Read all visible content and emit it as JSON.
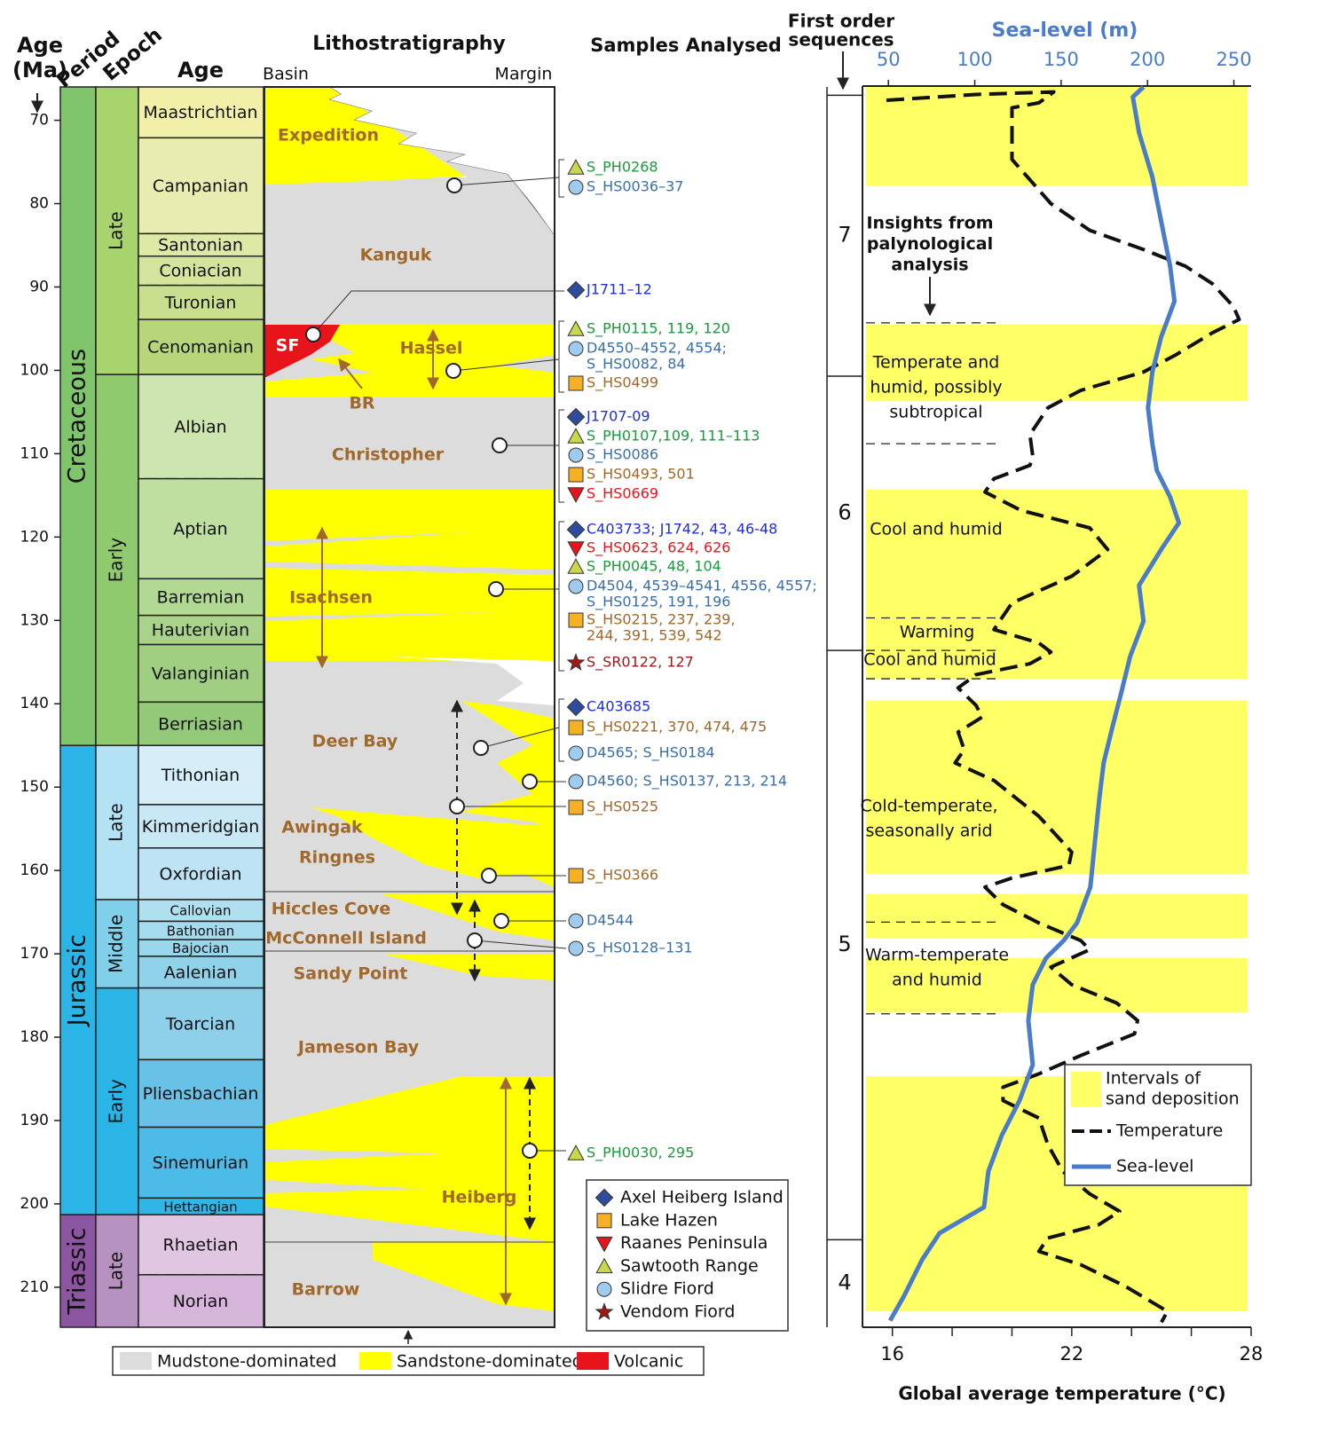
{
  "headers": {
    "age_ma": [
      "Age",
      "(Ma)"
    ],
    "period": "Period",
    "epoch": "Epoch",
    "age": "Age",
    "lithostratigraphy": "Lithostratigraphy",
    "basin": "Basin",
    "margin": "Margin",
    "samples": "Samples Analysed",
    "sequences": [
      "First order",
      "sequences"
    ]
  },
  "age_axis": {
    "ylim": [
      66,
      214.8
    ],
    "yticks": [
      70,
      80,
      90,
      100,
      110,
      120,
      130,
      140,
      150,
      160,
      170,
      180,
      190,
      200,
      210
    ]
  },
  "periods": [
    {
      "name": "Cretaceous",
      "top": 66,
      "base": 145,
      "color": "#80c46c"
    },
    {
      "name": "Jurassic",
      "top": 145,
      "base": 201.3,
      "color": "#2bb5e6"
    },
    {
      "name": "Triassic",
      "top": 201.3,
      "base": 214.8,
      "color": "#8b55a0"
    }
  ],
  "epochs": [
    {
      "name": "Late",
      "top": 66,
      "base": 100.5,
      "color": "#a8d46e"
    },
    {
      "name": "Early",
      "top": 100.5,
      "base": 145,
      "color": "#8fcb6e"
    },
    {
      "name": "Late",
      "top": 145,
      "base": 163.5,
      "color": "#b3e2f5"
    },
    {
      "name": "Middle",
      "top": 163.5,
      "base": 174.1,
      "color": "#80d0ea"
    },
    {
      "name": "Early",
      "top": 174.1,
      "base": 201.3,
      "color": "#2bb5e6"
    },
    {
      "name": "Late",
      "top": 201.3,
      "base": 214.8,
      "color": "#b692c0"
    }
  ],
  "stages": [
    {
      "name": "Maastrichtian",
      "top": 66,
      "base": 72.1,
      "color": "#f2f0a8"
    },
    {
      "name": "Campanian",
      "top": 72.1,
      "base": 83.6,
      "color": "#e8ecb0",
      "base_line": "dashed"
    },
    {
      "name": "Santonian",
      "top": 83.6,
      "base": 86.3,
      "color": "#dfe9a6",
      "base_line": "dashed"
    },
    {
      "name": "Coniacian",
      "top": 86.3,
      "base": 89.8,
      "color": "#d5e49c",
      "base_line": "dashed"
    },
    {
      "name": "Turonian",
      "top": 89.8,
      "base": 93.9,
      "color": "#c9df8e"
    },
    {
      "name": "Cenomanian",
      "top": 93.9,
      "base": 100.5,
      "color": "#b7d67a"
    },
    {
      "name": "Albian",
      "top": 100.5,
      "base": 113,
      "color": "#cde5ae",
      "base_line": "dashed"
    },
    {
      "name": "Aptian",
      "top": 113,
      "base": 125,
      "color": "#bfdfa1"
    },
    {
      "name": "Barremian",
      "top": 125,
      "base": 129.4,
      "color": "#b2d994"
    },
    {
      "name": "Hauterivian",
      "top": 129.4,
      "base": 132.9,
      "color": "#a9d38a"
    },
    {
      "name": "Valanginian",
      "top": 132.9,
      "base": 139.8,
      "color": "#a0cf81"
    },
    {
      "name": "Berriasian",
      "top": 139.8,
      "base": 145,
      "color": "#93c979"
    },
    {
      "name": "Tithonian",
      "top": 145,
      "base": 152.1,
      "color": "#d6eef8"
    },
    {
      "name": "Kimmeridgian",
      "top": 152.1,
      "base": 157.3,
      "color": "#c8e8f6"
    },
    {
      "name": "Oxfordian",
      "top": 157.3,
      "base": 163.5,
      "color": "#bde3f4"
    },
    {
      "name": "Callovian",
      "top": 163.5,
      "base": 166.1,
      "color": "#b0dff0"
    },
    {
      "name": "Bathonian",
      "top": 166.1,
      "base": 168.3,
      "color": "#a5dbee"
    },
    {
      "name": "Bajocian",
      "top": 168.3,
      "base": 170.3,
      "color": "#9ad6ec"
    },
    {
      "name": "Aalenian",
      "top": 170.3,
      "base": 174.1,
      "color": "#90d2ea"
    },
    {
      "name": "Toarcian",
      "top": 174.1,
      "base": 182.7,
      "color": "#8ecfea"
    },
    {
      "name": "Pliensbachian",
      "top": 182.7,
      "base": 190.8,
      "color": "#68c2e8"
    },
    {
      "name": "Sinemurian",
      "top": 190.8,
      "base": 199.3,
      "color": "#4cbbe8"
    },
    {
      "name": "Hettangian",
      "top": 199.3,
      "base": 201.3,
      "color": "#2fb5e6"
    },
    {
      "name": "Rhaetian",
      "top": 201.3,
      "base": 208.5,
      "color": "#e1c6e1",
      "base_line": "dashed"
    },
    {
      "name": "Norian",
      "top": 208.5,
      "base": 214.8,
      "color": "#d5b5d9"
    }
  ],
  "formations": [
    {
      "name": "Expedition",
      "color": "#a0682a"
    },
    {
      "name": "Kanguk",
      "color": "#a0682a"
    },
    {
      "name": "Hassel",
      "color": "#a0682a"
    },
    {
      "name": "SF",
      "color": "#ffffff"
    },
    {
      "name": "BR",
      "color": "#a0682a"
    },
    {
      "name": "Christopher",
      "color": "#a0682a"
    },
    {
      "name": "Isachsen",
      "color": "#a0682a"
    },
    {
      "name": "Deer Bay",
      "color": "#a0682a"
    },
    {
      "name": "Awingak",
      "color": "#a0682a"
    },
    {
      "name": "Ringnes",
      "color": "#a0682a"
    },
    {
      "name": "Hiccles Cove",
      "color": "#a0682a"
    },
    {
      "name": "McConnell Island",
      "color": "#a0682a"
    },
    {
      "name": "Sandy Point",
      "color": "#a0682a"
    },
    {
      "name": "Jameson Bay",
      "color": "#a0682a"
    },
    {
      "name": "Heiberg",
      "color": "#a0682a"
    },
    {
      "name": "Barrow",
      "color": "#a0682a"
    }
  ],
  "samples": [
    {
      "marker": "triangle",
      "marker_color": "#c8d84a",
      "text_color": "#1a9a3a",
      "lines": [
        "S_PH0268"
      ]
    },
    {
      "marker": "circle",
      "marker_color": "#9fcbee",
      "text_color": "#3a6fa8",
      "lines": [
        "S_HS0036–37"
      ]
    },
    {
      "marker": "diamond",
      "marker_color": "#2f4b9c",
      "text_color": "#1f2fd6",
      "lines": [
        "J1711–12"
      ]
    },
    {
      "marker": "triangle",
      "marker_color": "#c8d84a",
      "text_color": "#1a9a3a",
      "lines": [
        "S_PH0115, 119, 120"
      ]
    },
    {
      "marker": "circle",
      "marker_color": "#9fcbee",
      "text_color": "#3a6fa8",
      "lines": [
        "D4550–4552, 4554;",
        "S_HS0082, 84"
      ]
    },
    {
      "marker": "square",
      "marker_color": "#f5b026",
      "text_color": "#a0682a",
      "lines": [
        "S_HS0499"
      ]
    },
    {
      "marker": "diamond",
      "marker_color": "#2f4b9c",
      "text_color": "#1f2fd6",
      "lines": [
        "J1707-09"
      ]
    },
    {
      "marker": "triangle",
      "marker_color": "#c8d84a",
      "text_color": "#1a9a3a",
      "lines": [
        "S_PH0107,109, 111–113"
      ]
    },
    {
      "marker": "circle",
      "marker_color": "#9fcbee",
      "text_color": "#3a6fa8",
      "lines": [
        "S_HS0086"
      ]
    },
    {
      "marker": "square",
      "marker_color": "#f5b026",
      "text_color": "#a0682a",
      "lines": [
        "S_HS0493, 501"
      ]
    },
    {
      "marker": "inverted-triangle",
      "marker_color": "#e8141b",
      "text_color": "#e8141b",
      "lines": [
        "S_HS0669"
      ]
    },
    {
      "marker": "diamond",
      "marker_color": "#2f4b9c",
      "text_color": "#1f2fd6",
      "lines": [
        "C403733; J1742, 43, 46-48"
      ]
    },
    {
      "marker": "inverted-triangle",
      "marker_color": "#e8141b",
      "text_color": "#e8141b",
      "lines": [
        "S_HS0623, 624, 626"
      ]
    },
    {
      "marker": "triangle",
      "marker_color": "#c8d84a",
      "text_color": "#1a9a3a",
      "lines": [
        "S_PH0045, 48, 104"
      ]
    },
    {
      "marker": "circle",
      "marker_color": "#9fcbee",
      "text_color": "#3a6fa8",
      "lines": [
        "D4504, 4539–4541, 4556, 4557;",
        "S_HS0125, 191, 196"
      ]
    },
    {
      "marker": "square",
      "marker_color": "#f5b026",
      "text_color": "#a0682a",
      "lines": [
        "S_HS0215, 237, 239,",
        "244, 391, 539, 542"
      ]
    },
    {
      "marker": "star",
      "marker_color": "#a01818",
      "text_color": "#a01818",
      "lines": [
        "S_SR0122, 127"
      ]
    },
    {
      "marker": "diamond",
      "marker_color": "#2f4b9c",
      "text_color": "#1f2fd6",
      "lines": [
        "C403685"
      ]
    },
    {
      "marker": "square",
      "marker_color": "#f5b026",
      "text_color": "#a0682a",
      "lines": [
        "S_HS0221, 370, 474, 475"
      ]
    },
    {
      "marker": "circle",
      "marker_color": "#9fcbee",
      "text_color": "#3a6fa8",
      "lines": [
        "D4565; S_HS0184"
      ]
    },
    {
      "marker": "circle",
      "marker_color": "#9fcbee",
      "text_color": "#3a6fa8",
      "lines": [
        "D4560; S_HS0137, 213, 214"
      ]
    },
    {
      "marker": "square",
      "marker_color": "#f5b026",
      "text_color": "#a0682a",
      "lines": [
        "S_HS0525"
      ]
    },
    {
      "marker": "square",
      "marker_color": "#f5b026",
      "text_color": "#a0682a",
      "lines": [
        "S_HS0366"
      ]
    },
    {
      "marker": "circle",
      "marker_color": "#9fcbee",
      "text_color": "#3a6fa8",
      "lines": [
        "D4544"
      ]
    },
    {
      "marker": "circle",
      "marker_color": "#9fcbee",
      "text_color": "#3a6fa8",
      "lines": [
        "S_HS0128–131"
      ]
    },
    {
      "marker": "triangle",
      "marker_color": "#c8d84a",
      "text_color": "#1a9a3a",
      "lines": [
        "S_PH0030, 295"
      ]
    }
  ],
  "locality_legend": [
    {
      "name": "Axel Heiberg Island",
      "marker": "diamond",
      "marker_color": "#2f4b9c"
    },
    {
      "name": "Lake Hazen",
      "marker": "square",
      "marker_color": "#f5b026"
    },
    {
      "name": "Raanes Peninsula",
      "marker": "inverted-triangle",
      "marker_color": "#e8141b"
    },
    {
      "name": "Sawtooth Range",
      "marker": "triangle",
      "marker_color": "#c8d84a"
    },
    {
      "name": "Slidre Fiord",
      "marker": "circle",
      "marker_color": "#9fcbee"
    },
    {
      "name": "Vendom Fiord",
      "marker": "star",
      "marker_color": "#a01818"
    }
  ],
  "lithology_legend": [
    {
      "name": "Mudstone-dominated",
      "color": "#dcdcdc"
    },
    {
      "name": "Sandstone-dominated",
      "color": "#ffff00"
    },
    {
      "name": "Volcanic",
      "color": "#e8141b"
    }
  ],
  "chart_data": {
    "type": "line",
    "x_label": "Global average temperature (°C)",
    "x2_label": "Sea-level (m)",
    "xlim": [
      15,
      28
    ],
    "xticks": [
      16,
      22,
      28
    ],
    "xticks_minor": [
      18,
      20,
      24,
      26
    ],
    "x2lim": [
      35,
      260
    ],
    "x2ticks": [
      50,
      100,
      150,
      200,
      250
    ],
    "x2_color": "#4a7cc9",
    "series": [
      {
        "name": "Temperature",
        "color": "#111111",
        "style": "dashed",
        "age": [
          67.6,
          66.9,
          66.6,
          67.9,
          68.5,
          74.7,
          80.0,
          83.2,
          85.5,
          87.5,
          89.6,
          92.3,
          93.9,
          95.5,
          98.1,
          100.2,
          102.4,
          104.5,
          107.7,
          110.4,
          111.4,
          113.0,
          114.6,
          116.8,
          118.9,
          121.5,
          124.7,
          127.9,
          131.1,
          132.7,
          133.8,
          135.2,
          136.5,
          138.1,
          140.2,
          141.6,
          143.4,
          145.5,
          147.1,
          149.2,
          153.5,
          157.8,
          159.4,
          160.9,
          162.0,
          164.1,
          166.3,
          168.4,
          169.5,
          171.6,
          173.7,
          175.9,
          178.0,
          179.6,
          182.2,
          184.4,
          186.0,
          187.6,
          189.7,
          192.9,
          196.1,
          198.8,
          200.9,
          202.5,
          204.1,
          205.7,
          207.3,
          209.9,
          212.9,
          214.2
        ],
        "values": [
          15.8,
          18.8,
          21.4,
          20.9,
          20.0,
          20.0,
          21.3,
          22.6,
          24.4,
          25.8,
          26.7,
          27.4,
          27.6,
          26.7,
          25.5,
          24.4,
          22.3,
          21.2,
          20.6,
          20.7,
          20.6,
          19.4,
          19.1,
          20.3,
          22.6,
          23.2,
          22.0,
          20.0,
          19.4,
          20.9,
          21.3,
          20.6,
          18.8,
          18.2,
          18.8,
          19.0,
          18.2,
          18.4,
          18.1,
          19.4,
          20.9,
          22.0,
          21.9,
          20.0,
          19.1,
          19.7,
          20.9,
          22.3,
          22.6,
          21.3,
          22.0,
          23.5,
          24.2,
          24.1,
          22.3,
          20.9,
          19.7,
          19.7,
          20.9,
          21.2,
          21.7,
          22.6,
          23.6,
          22.9,
          21.2,
          20.9,
          22.3,
          23.8,
          25.2,
          25.0
        ]
      },
      {
        "name": "Sea-level",
        "color": "#4a7cc9",
        "style": "solid",
        "axis": "x2",
        "age": [
          66.0,
          67.2,
          71.5,
          76.8,
          82.1,
          87.5,
          91.7,
          96.0,
          100.2,
          104.5,
          108.8,
          112.0,
          115.2,
          118.3,
          121.5,
          125.8,
          130.1,
          134.3,
          138.6,
          142.8,
          147.1,
          151.4,
          156.7,
          162.0,
          166.3,
          168.4,
          170.5,
          173.7,
          178.0,
          183.3,
          187.6,
          191.8,
          196.1,
          200.4,
          203.5,
          206.7,
          211.0,
          214.0
        ],
        "values": [
          197.7,
          191.5,
          195.1,
          202.8,
          207.9,
          213.1,
          215.6,
          207.9,
          202.8,
          200.3,
          202.8,
          205.4,
          213.1,
          218.2,
          207.9,
          195.1,
          197.7,
          190.0,
          184.9,
          179.7,
          174.6,
          172.1,
          169.5,
          166.9,
          159.2,
          151.5,
          141.3,
          133.6,
          131.0,
          133.6,
          125.9,
          115.6,
          107.9,
          105.4,
          79.7,
          69.5,
          59.2,
          51.0
        ]
      }
    ],
    "sand_intervals": {
      "name": [
        "Intervals of",
        "sand deposition"
      ],
      "color": "#ffff66",
      "ranges": [
        [
          66.0,
          77.9
        ],
        [
          94.5,
          103.7
        ],
        [
          114.3,
          137.0
        ],
        [
          139.6,
          160.4
        ],
        [
          162.8,
          168.1
        ],
        [
          170.5,
          177.0
        ],
        [
          184.7,
          212.9
        ]
      ]
    },
    "dashed_lines": [
      94.3,
      108.8,
      129.7,
      133.6,
      137.0,
      166.2,
      177.2
    ],
    "sequences": [
      {
        "label": "7",
        "top": 67.0,
        "base": 100.7
      },
      {
        "label": "6",
        "top": 100.7,
        "base": 133.6
      },
      {
        "label": "5",
        "top": 133.6,
        "base": 204.3
      },
      {
        "label": "4",
        "top": 204.3,
        "base": 214.8
      }
    ],
    "annotations": [
      {
        "lines": [
          "Insights from",
          "palynological",
          "analysis"
        ]
      },
      {
        "lines": [
          "Temperate and",
          "humid, possibly",
          "subtropical"
        ]
      },
      {
        "lines": [
          "Cool and humid"
        ]
      },
      {
        "lines": [
          "Warming"
        ]
      },
      {
        "lines": [
          "Cool and humid"
        ]
      },
      {
        "lines": [
          "Cold-temperate,",
          "seasonally arid"
        ]
      },
      {
        "lines": [
          "Warm-temperate",
          "and humid"
        ]
      }
    ]
  }
}
